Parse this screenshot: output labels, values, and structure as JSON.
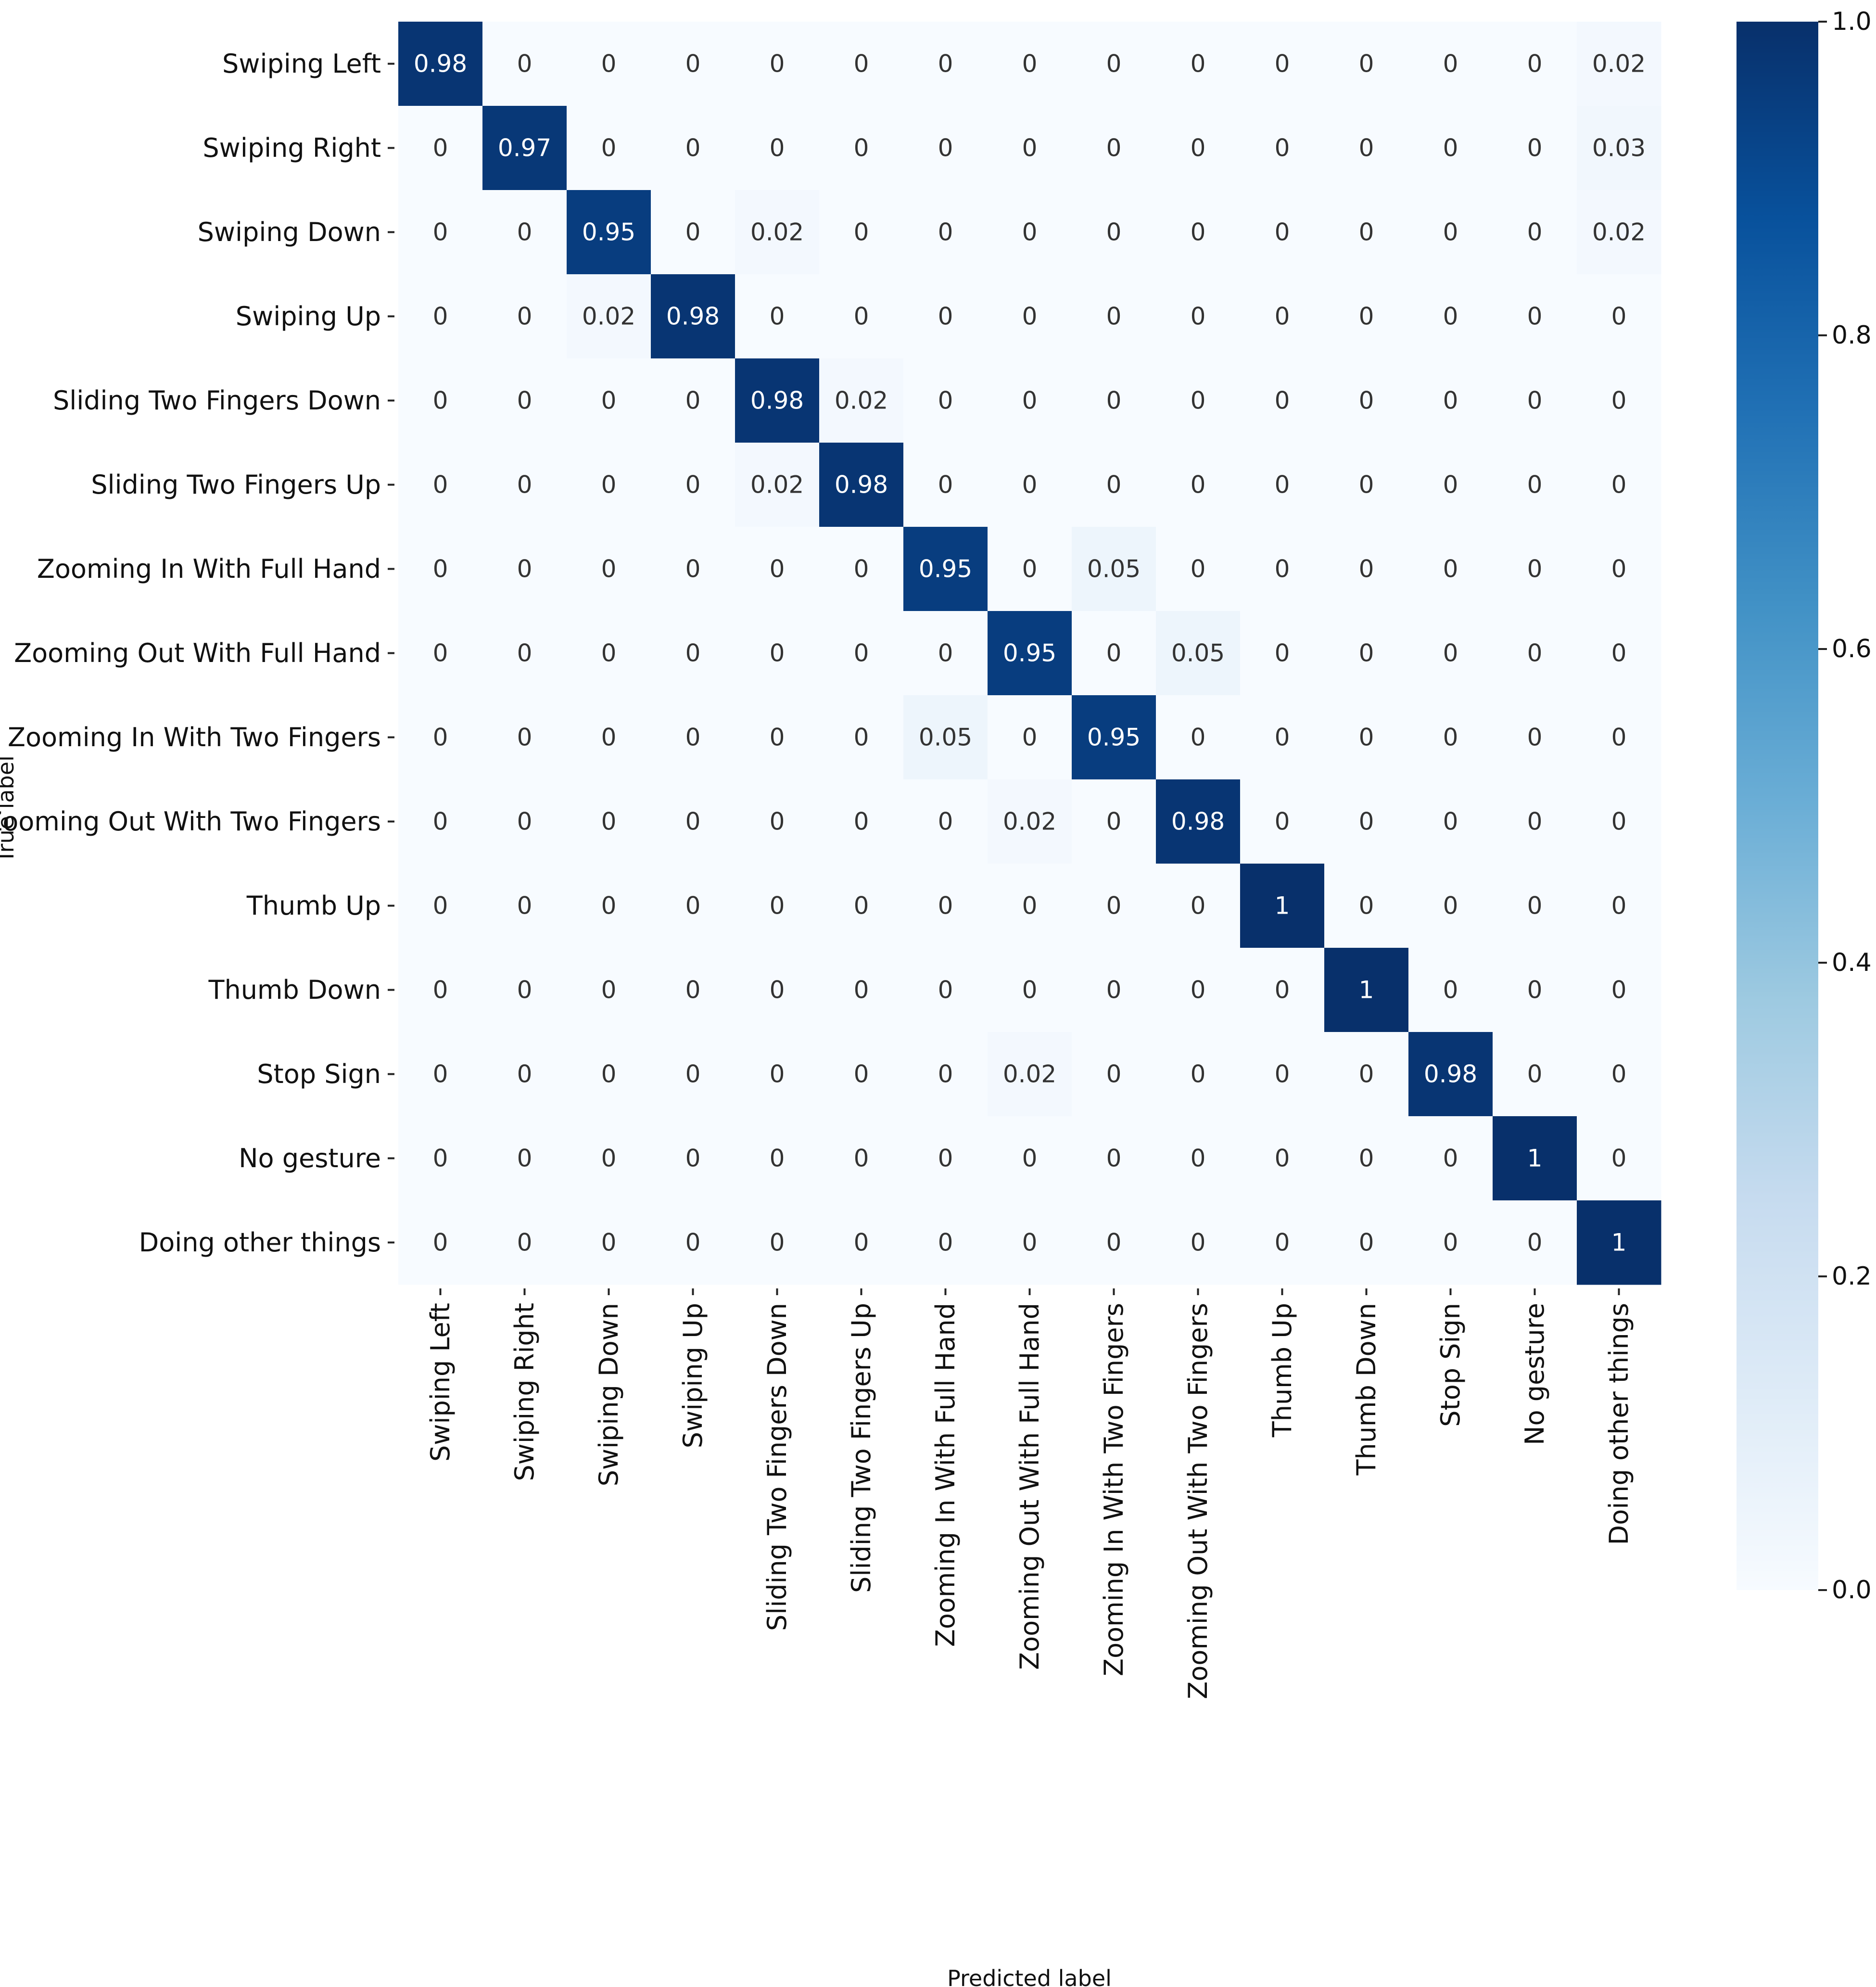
{
  "chart_data": {
    "type": "heatmap",
    "title": "",
    "xlabel": "Predicted label",
    "ylabel": "True label",
    "categories": [
      "Swiping Left",
      "Swiping Right",
      "Swiping Down",
      "Swiping Up",
      "Sliding Two Fingers Down",
      "Sliding Two Fingers Up",
      "Zooming In With Full Hand",
      "Zooming Out With Full Hand",
      "Zooming In With Two Fingers",
      "Zooming Out With Two Fingers",
      "Thumb Up",
      "Thumb Down",
      "Stop Sign",
      "No gesture",
      "Doing other things"
    ],
    "matrix": [
      [
        0.98,
        0,
        0,
        0,
        0,
        0,
        0,
        0,
        0,
        0,
        0,
        0,
        0,
        0,
        0.02
      ],
      [
        0,
        0.97,
        0,
        0,
        0,
        0,
        0,
        0,
        0,
        0,
        0,
        0,
        0,
        0,
        0.03
      ],
      [
        0,
        0,
        0.95,
        0,
        0.02,
        0,
        0,
        0,
        0,
        0,
        0,
        0,
        0,
        0,
        0.02
      ],
      [
        0,
        0,
        0.02,
        0.98,
        0,
        0,
        0,
        0,
        0,
        0,
        0,
        0,
        0,
        0,
        0
      ],
      [
        0,
        0,
        0,
        0,
        0.98,
        0.02,
        0,
        0,
        0,
        0,
        0,
        0,
        0,
        0,
        0
      ],
      [
        0,
        0,
        0,
        0,
        0.02,
        0.98,
        0,
        0,
        0,
        0,
        0,
        0,
        0,
        0,
        0
      ],
      [
        0,
        0,
        0,
        0,
        0,
        0,
        0.95,
        0,
        0.05,
        0,
        0,
        0,
        0,
        0,
        0
      ],
      [
        0,
        0,
        0,
        0,
        0,
        0,
        0,
        0.95,
        0,
        0.05,
        0,
        0,
        0,
        0,
        0
      ],
      [
        0,
        0,
        0,
        0,
        0,
        0,
        0.05,
        0,
        0.95,
        0,
        0,
        0,
        0,
        0,
        0
      ],
      [
        0,
        0,
        0,
        0,
        0,
        0,
        0,
        0.02,
        0,
        0.98,
        0,
        0,
        0,
        0,
        0
      ],
      [
        0,
        0,
        0,
        0,
        0,
        0,
        0,
        0,
        0,
        0,
        1,
        0,
        0,
        0,
        0
      ],
      [
        0,
        0,
        0,
        0,
        0,
        0,
        0,
        0,
        0,
        0,
        0,
        1,
        0,
        0,
        0
      ],
      [
        0,
        0,
        0,
        0,
        0,
        0,
        0,
        0.02,
        0,
        0,
        0,
        0,
        0.98,
        0,
        0
      ],
      [
        0,
        0,
        0,
        0,
        0,
        0,
        0,
        0,
        0,
        0,
        0,
        0,
        0,
        1,
        0
      ],
      [
        0,
        0,
        0,
        0,
        0,
        0,
        0,
        0,
        0,
        0,
        0,
        0,
        0,
        0,
        1
      ]
    ],
    "colorbar": {
      "range": [
        0,
        1.0
      ],
      "ticks": [
        "0.0",
        "0.2",
        "0.4",
        "0.6",
        "0.8",
        "1.0"
      ],
      "colormap": "Blues"
    },
    "colors": {
      "low": "#f7fbff",
      "high": "#08306b",
      "text_dark_cell": "#ffffff",
      "text_light_cell": "#333333"
    }
  }
}
